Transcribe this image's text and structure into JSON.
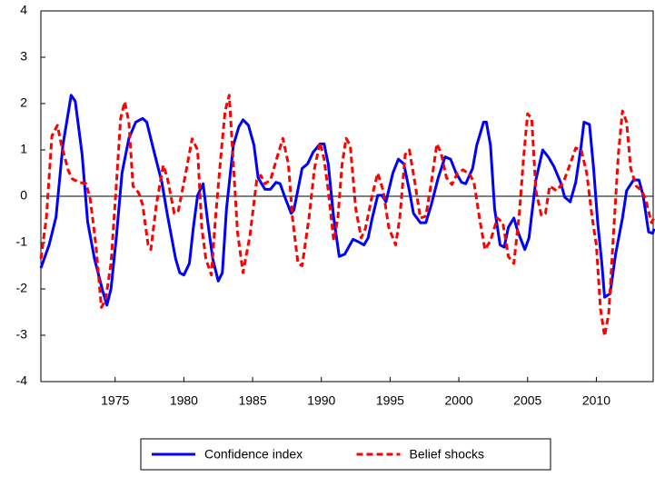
{
  "chart_data": {
    "type": "line",
    "xlim": [
      1969.6,
      2014.2
    ],
    "xticks": [
      1975,
      1980,
      1985,
      1990,
      1995,
      2000,
      2005,
      2010
    ],
    "ylim": [
      -4,
      4
    ],
    "yticks": [
      -4,
      -3,
      -2,
      -1,
      0,
      1,
      2,
      3,
      4
    ],
    "zero_line": true,
    "legend": "bottom",
    "series": [
      {
        "name": "Confidence index",
        "color": "#0000ff",
        "style": "solid",
        "x": [
          1969.6,
          1970.2,
          1970.7,
          1971.2,
          1971.8,
          1972.1,
          1972.6,
          1973.0,
          1973.5,
          1974.1,
          1974.4,
          1974.7,
          1975.1,
          1975.5,
          1976.0,
          1976.5,
          1977.0,
          1977.3,
          1977.8,
          1978.4,
          1978.8,
          1979.4,
          1979.7,
          1980.0,
          1980.4,
          1980.7,
          1981.0,
          1981.4,
          1981.7,
          1982.1,
          1982.5,
          1982.8,
          1983.1,
          1983.6,
          1984.0,
          1984.3,
          1984.7,
          1985.1,
          1985.4,
          1985.9,
          1986.3,
          1986.7,
          1987.0,
          1987.3,
          1987.8,
          1988.0,
          1988.6,
          1989.0,
          1989.4,
          1989.9,
          1990.2,
          1990.5,
          1990.9,
          1991.3,
          1991.7,
          1992.3,
          1992.6,
          1993.1,
          1993.4,
          1993.7,
          1994.1,
          1994.4,
          1994.7,
          1995.2,
          1995.6,
          1996.0,
          1996.4,
          1996.7,
          1997.2,
          1997.6,
          1998.0,
          1998.5,
          1999.0,
          1999.4,
          1999.8,
          2000.2,
          2000.5,
          2001.0,
          2001.3,
          2001.8,
          2002.0,
          2002.3,
          2002.6,
          2003.0,
          2003.3,
          2003.6,
          2004.0,
          2004.3,
          2004.8,
          2005.1,
          2005.6,
          2006.1,
          2006.5,
          2006.9,
          2007.4,
          2007.7,
          2008.1,
          2008.5,
          2008.9,
          2009.1,
          2009.5,
          2009.8,
          2010.1,
          2010.4,
          2010.6,
          2011.0,
          2011.4,
          2011.9,
          2012.2,
          2012.7,
          2013.1,
          2013.4,
          2013.8,
          2014.1,
          2014.2
        ],
        "values": [
          -1.55,
          -1.05,
          -0.45,
          1.1,
          2.18,
          2.05,
          0.9,
          -0.55,
          -1.35,
          -2.05,
          -2.35,
          -2.0,
          -0.85,
          0.5,
          1.25,
          1.6,
          1.68,
          1.6,
          1.0,
          0.3,
          -0.4,
          -1.35,
          -1.65,
          -1.7,
          -1.45,
          -0.65,
          0.02,
          0.27,
          -0.47,
          -1.35,
          -1.83,
          -1.65,
          -0.27,
          1.1,
          1.5,
          1.65,
          1.53,
          1.1,
          0.4,
          0.15,
          0.15,
          0.3,
          0.27,
          0.02,
          -0.37,
          -0.3,
          0.6,
          0.7,
          0.95,
          1.13,
          1.13,
          0.7,
          -0.47,
          -1.3,
          -1.25,
          -0.93,
          -0.97,
          -1.05,
          -0.9,
          -0.47,
          0.02,
          0.02,
          -0.12,
          0.5,
          0.8,
          0.7,
          0.12,
          -0.37,
          -0.57,
          -0.57,
          -0.18,
          0.4,
          0.85,
          0.8,
          0.5,
          0.3,
          0.27,
          0.6,
          1.1,
          1.6,
          1.6,
          1.1,
          -0.27,
          -1.05,
          -1.1,
          -0.67,
          -0.47,
          -0.77,
          -1.15,
          -0.9,
          0.35,
          1.0,
          0.85,
          0.65,
          0.3,
          -0.02,
          -0.12,
          0.3,
          1.1,
          1.6,
          1.55,
          0.6,
          -0.57,
          -1.45,
          -2.18,
          -2.1,
          -1.25,
          -0.47,
          0.12,
          0.35,
          0.35,
          0.02,
          -0.77,
          -0.8,
          -0.7
        ]
      },
      {
        "name": "Belief shocks",
        "color": "#ff0000",
        "style": "dashed",
        "x": [
          1969.6,
          1970.0,
          1970.4,
          1970.8,
          1971.1,
          1971.6,
          1971.9,
          1972.4,
          1972.9,
          1973.2,
          1973.6,
          1974.0,
          1974.3,
          1974.7,
          1975.1,
          1975.4,
          1975.7,
          1976.0,
          1976.3,
          1976.7,
          1977.0,
          1977.4,
          1977.6,
          1978.0,
          1978.5,
          1978.8,
          1979.3,
          1979.6,
          1980.2,
          1980.6,
          1981.0,
          1981.3,
          1981.6,
          1982.0,
          1982.3,
          1982.7,
          1983.0,
          1983.3,
          1983.6,
          1983.9,
          1984.3,
          1984.8,
          1985.3,
          1985.6,
          1985.9,
          1986.3,
          1986.8,
          1987.2,
          1987.6,
          1987.9,
          1988.3,
          1988.6,
          1989.1,
          1989.5,
          1989.9,
          1990.2,
          1990.5,
          1990.9,
          1991.2,
          1991.5,
          1991.8,
          1992.1,
          1992.5,
          1992.9,
          1993.2,
          1993.7,
          1994.1,
          1994.5,
          1994.9,
          1995.4,
          1995.7,
          1996.1,
          1996.4,
          1996.8,
          1997.2,
          1997.6,
          1998.0,
          1998.4,
          1998.7,
          1999.1,
          1999.5,
          1999.9,
          2000.3,
          2000.8,
          2001.1,
          2001.5,
          2001.9,
          2002.3,
          2002.8,
          2003.2,
          2003.6,
          2004.0,
          2004.4,
          2004.7,
          2005.0,
          2005.3,
          2005.6,
          2006.0,
          2006.3,
          2006.6,
          2007.1,
          2007.6,
          2008.1,
          2008.5,
          2008.9,
          2009.3,
          2009.7,
          2010.0,
          2010.3,
          2010.6,
          2010.9,
          2011.2,
          2011.6,
          2011.9,
          2012.2,
          2012.5,
          2012.9,
          2013.3,
          2013.6,
          2014.0,
          2014.2
        ],
        "values": [
          -1.35,
          -0.47,
          1.3,
          1.53,
          1.1,
          0.55,
          0.37,
          0.3,
          0.27,
          -0.08,
          -1.05,
          -2.4,
          -2.24,
          -1.45,
          0.3,
          1.68,
          2.04,
          1.6,
          0.22,
          0.08,
          -0.18,
          -1.05,
          -1.15,
          -0.18,
          0.67,
          0.4,
          -0.37,
          -0.31,
          0.6,
          1.24,
          1.0,
          -0.67,
          -1.35,
          -1.7,
          -0.47,
          0.9,
          1.84,
          2.18,
          0.7,
          -0.77,
          -1.65,
          -0.86,
          0.35,
          0.45,
          0.27,
          0.35,
          0.86,
          1.25,
          0.7,
          -0.47,
          -1.45,
          -1.5,
          -0.47,
          0.6,
          1.16,
          0.8,
          0.12,
          -0.96,
          -0.47,
          0.67,
          1.25,
          1.1,
          -0.27,
          -0.9,
          -0.7,
          0.02,
          0.5,
          0.12,
          -0.67,
          -1.05,
          -0.47,
          0.9,
          1.0,
          0.3,
          -0.47,
          -0.43,
          0.3,
          1.13,
          0.94,
          0.4,
          0.25,
          0.5,
          0.57,
          0.47,
          0.3,
          -0.47,
          -1.15,
          -0.96,
          -0.47,
          -0.57,
          -1.3,
          -1.45,
          -0.37,
          0.8,
          1.78,
          1.68,
          0.12,
          -0.41,
          -0.37,
          0.22,
          0.12,
          0.3,
          0.7,
          1.04,
          1.0,
          0.5,
          -0.47,
          -1.05,
          -2.43,
          -3.02,
          -2.53,
          -1.05,
          0.9,
          1.84,
          1.6,
          0.6,
          0.22,
          0.12,
          -0.08,
          -0.57,
          -0.47
        ]
      }
    ]
  }
}
